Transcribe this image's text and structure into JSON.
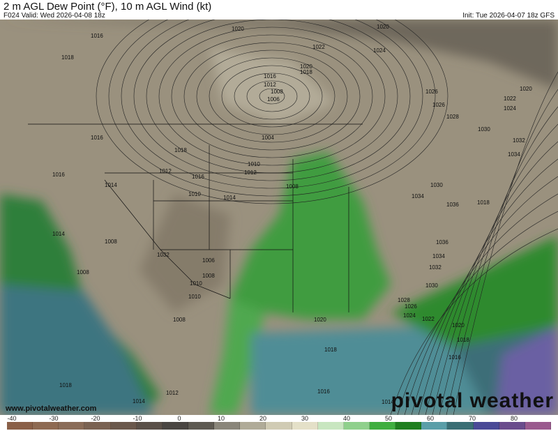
{
  "header": {
    "title": "2 m AGL Dew Point (°F), 10 m AGL Wind (kt)",
    "valid": "F024 Valid: Wed 2026-04-08 18z",
    "init": "Init: Tue 2026-04-07 18z GFS"
  },
  "map": {
    "isobar_labels": [
      "1020",
      "1016",
      "1018",
      "1022",
      "1020",
      "1024",
      "1020",
      "1018",
      "1016",
      "1012",
      "1008",
      "1006",
      "1004",
      "1026",
      "1020",
      "1022",
      "1024",
      "1026",
      "1028",
      "1030",
      "1032",
      "1034",
      "1016",
      "1018",
      "1012",
      "1016",
      "1010",
      "1012",
      "1014",
      "1010",
      "1014",
      "1008",
      "1008",
      "1032",
      "1030",
      "1034",
      "1036",
      "1018",
      "1016",
      "1014",
      "1008",
      "1006",
      "1008",
      "1010",
      "1010",
      "1008",
      "1036",
      "1034",
      "1032",
      "1030",
      "1028",
      "1026",
      "1024",
      "1022",
      "1020",
      "1020",
      "1018",
      "1018",
      "1016",
      "1016",
      "1018",
      "1014",
      "1012",
      "1014"
    ],
    "colors": {
      "land": "#9a917e",
      "green": "#3f9c3f",
      "gulf": "#4f8d96",
      "pacific": "#3c7480",
      "atlantic": "#6b61a3"
    }
  },
  "footer": {
    "site": "www.pivotalweather.com",
    "logo": "pivotal weather"
  },
  "colorbar": {
    "ticks": [
      "-40",
      "-30",
      "-20",
      "-10",
      "0",
      "10",
      "20",
      "30",
      "40",
      "50",
      "60",
      "70",
      "80"
    ],
    "range": [
      -40,
      90
    ],
    "colors": [
      "#8a6048",
      "#8e6a52",
      "#8a6c58",
      "#7a6252",
      "#6a584c",
      "#5a5048",
      "#4a4642",
      "#5e5a52",
      "#8a867a",
      "#b0ab98",
      "#d0cbb4",
      "#e4e0c8",
      "#c8e6c0",
      "#8fd08c",
      "#3fae3f",
      "#1f7f1f",
      "#5a9ea8",
      "#3a6e74",
      "#4a4a96",
      "#6a4c8c",
      "#9a5a8e"
    ]
  }
}
